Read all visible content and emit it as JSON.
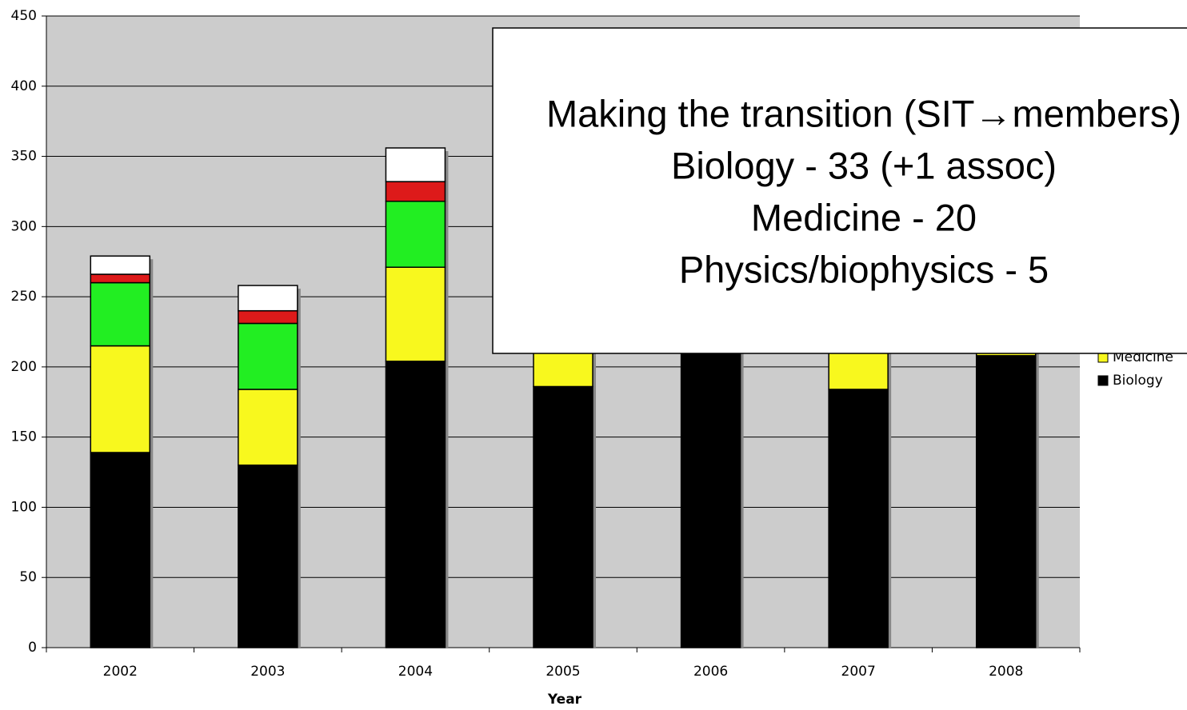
{
  "chart_data": {
    "type": "stacked_bar",
    "x_label": "Year",
    "categories": [
      "2002",
      "2003",
      "2004",
      "2005",
      "2006",
      "2007",
      "2008"
    ],
    "series": [
      {
        "name": "Biology",
        "color": "#000000",
        "values": [
          139,
          130,
          204,
          186,
          215,
          184,
          208
        ]
      },
      {
        "name": "Medicine",
        "color": "#f8f81e",
        "values": [
          76,
          54,
          67,
          60,
          null,
          60,
          55
        ]
      },
      {
        "color": "#22ee22",
        "values": [
          45,
          47,
          47,
          null,
          null,
          null,
          null
        ]
      },
      {
        "color": "#dd1a1a",
        "values": [
          6,
          9,
          14,
          null,
          null,
          null,
          null
        ]
      },
      {
        "color": "#ffffff",
        "values": [
          13,
          18,
          24,
          null,
          null,
          null,
          null
        ]
      }
    ],
    "ylim": [
      0,
      450
    ],
    "yticks": [
      0,
      50,
      100,
      150,
      200,
      250,
      300,
      350,
      400,
      450
    ],
    "grid": true,
    "plot_background": "#cccccc",
    "annotation": {
      "lines": [
        "Making the transition (SIT→members)",
        "Biology - 33 (+1 assoc)",
        "Medicine - 20",
        "Physics/biophysics - 5"
      ]
    }
  }
}
